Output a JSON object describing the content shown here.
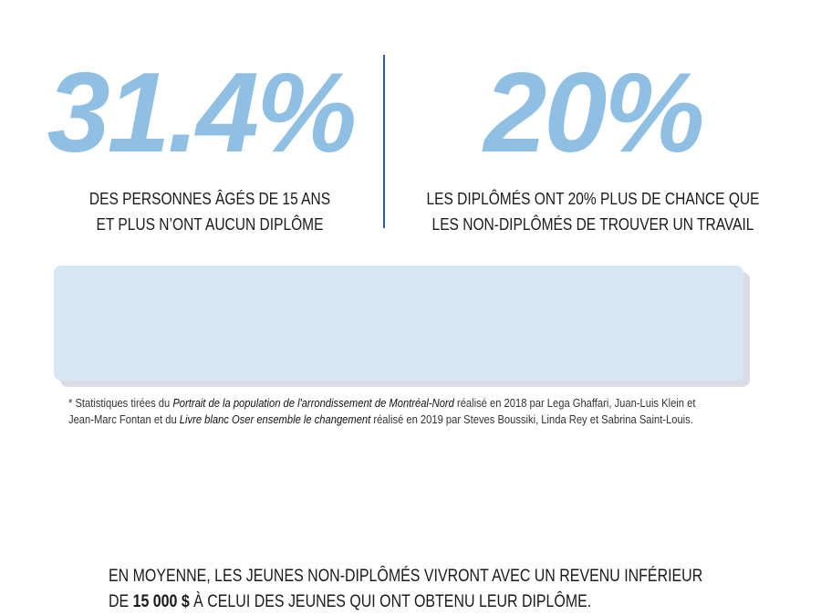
{
  "stats": [
    {
      "value": "31.4%",
      "caption_line1": "DES PERSONNES ÂGÉS DE 15 ANS",
      "caption_line2": "ET PLUS N’ONT AUCUN DIPLÔME"
    },
    {
      "value": "20%",
      "caption_line1": "LES DIPLÔMÉS ONT 20% PLUS DE CHANCE QUE",
      "caption_line2": "LES NON-DIPLÔMÉS DE TROUVER UN TRAVAIL"
    }
  ],
  "callout": {
    "line1": "EN MOYENNE, LES JEUNES NON-DIPLÔMÉS VIVRONT AVEC UN REVENU INFÉRIEUR",
    "line2_prefix": "DE ",
    "line2_amount": "15 000 $",
    "line2_suffix": " À CELUI DES JEUNES QUI ONT OBTENU LEUR DIPLÔME."
  },
  "footnote": {
    "p1": "* Statistiques tirées du ",
    "source1": "Portrait de la population de l'arrondissement de Montréal-Nord",
    "p2": " réalisé en 2018 par Lega Ghaffari, Juan-Luis Klein et",
    "p3": "Jean-Marc Fontan et du ",
    "source2": "Livre blanc Oser ensemble le changement",
    "p4": " réalisé en 2019 par Steves Boussiki, Linda Rey et Sabrina Saint-Louis."
  },
  "colors": {
    "accent": "#8fc0e3",
    "box": "#d6e6f5",
    "divider": "#2d5f94",
    "shadow": "#dcdbe8"
  }
}
